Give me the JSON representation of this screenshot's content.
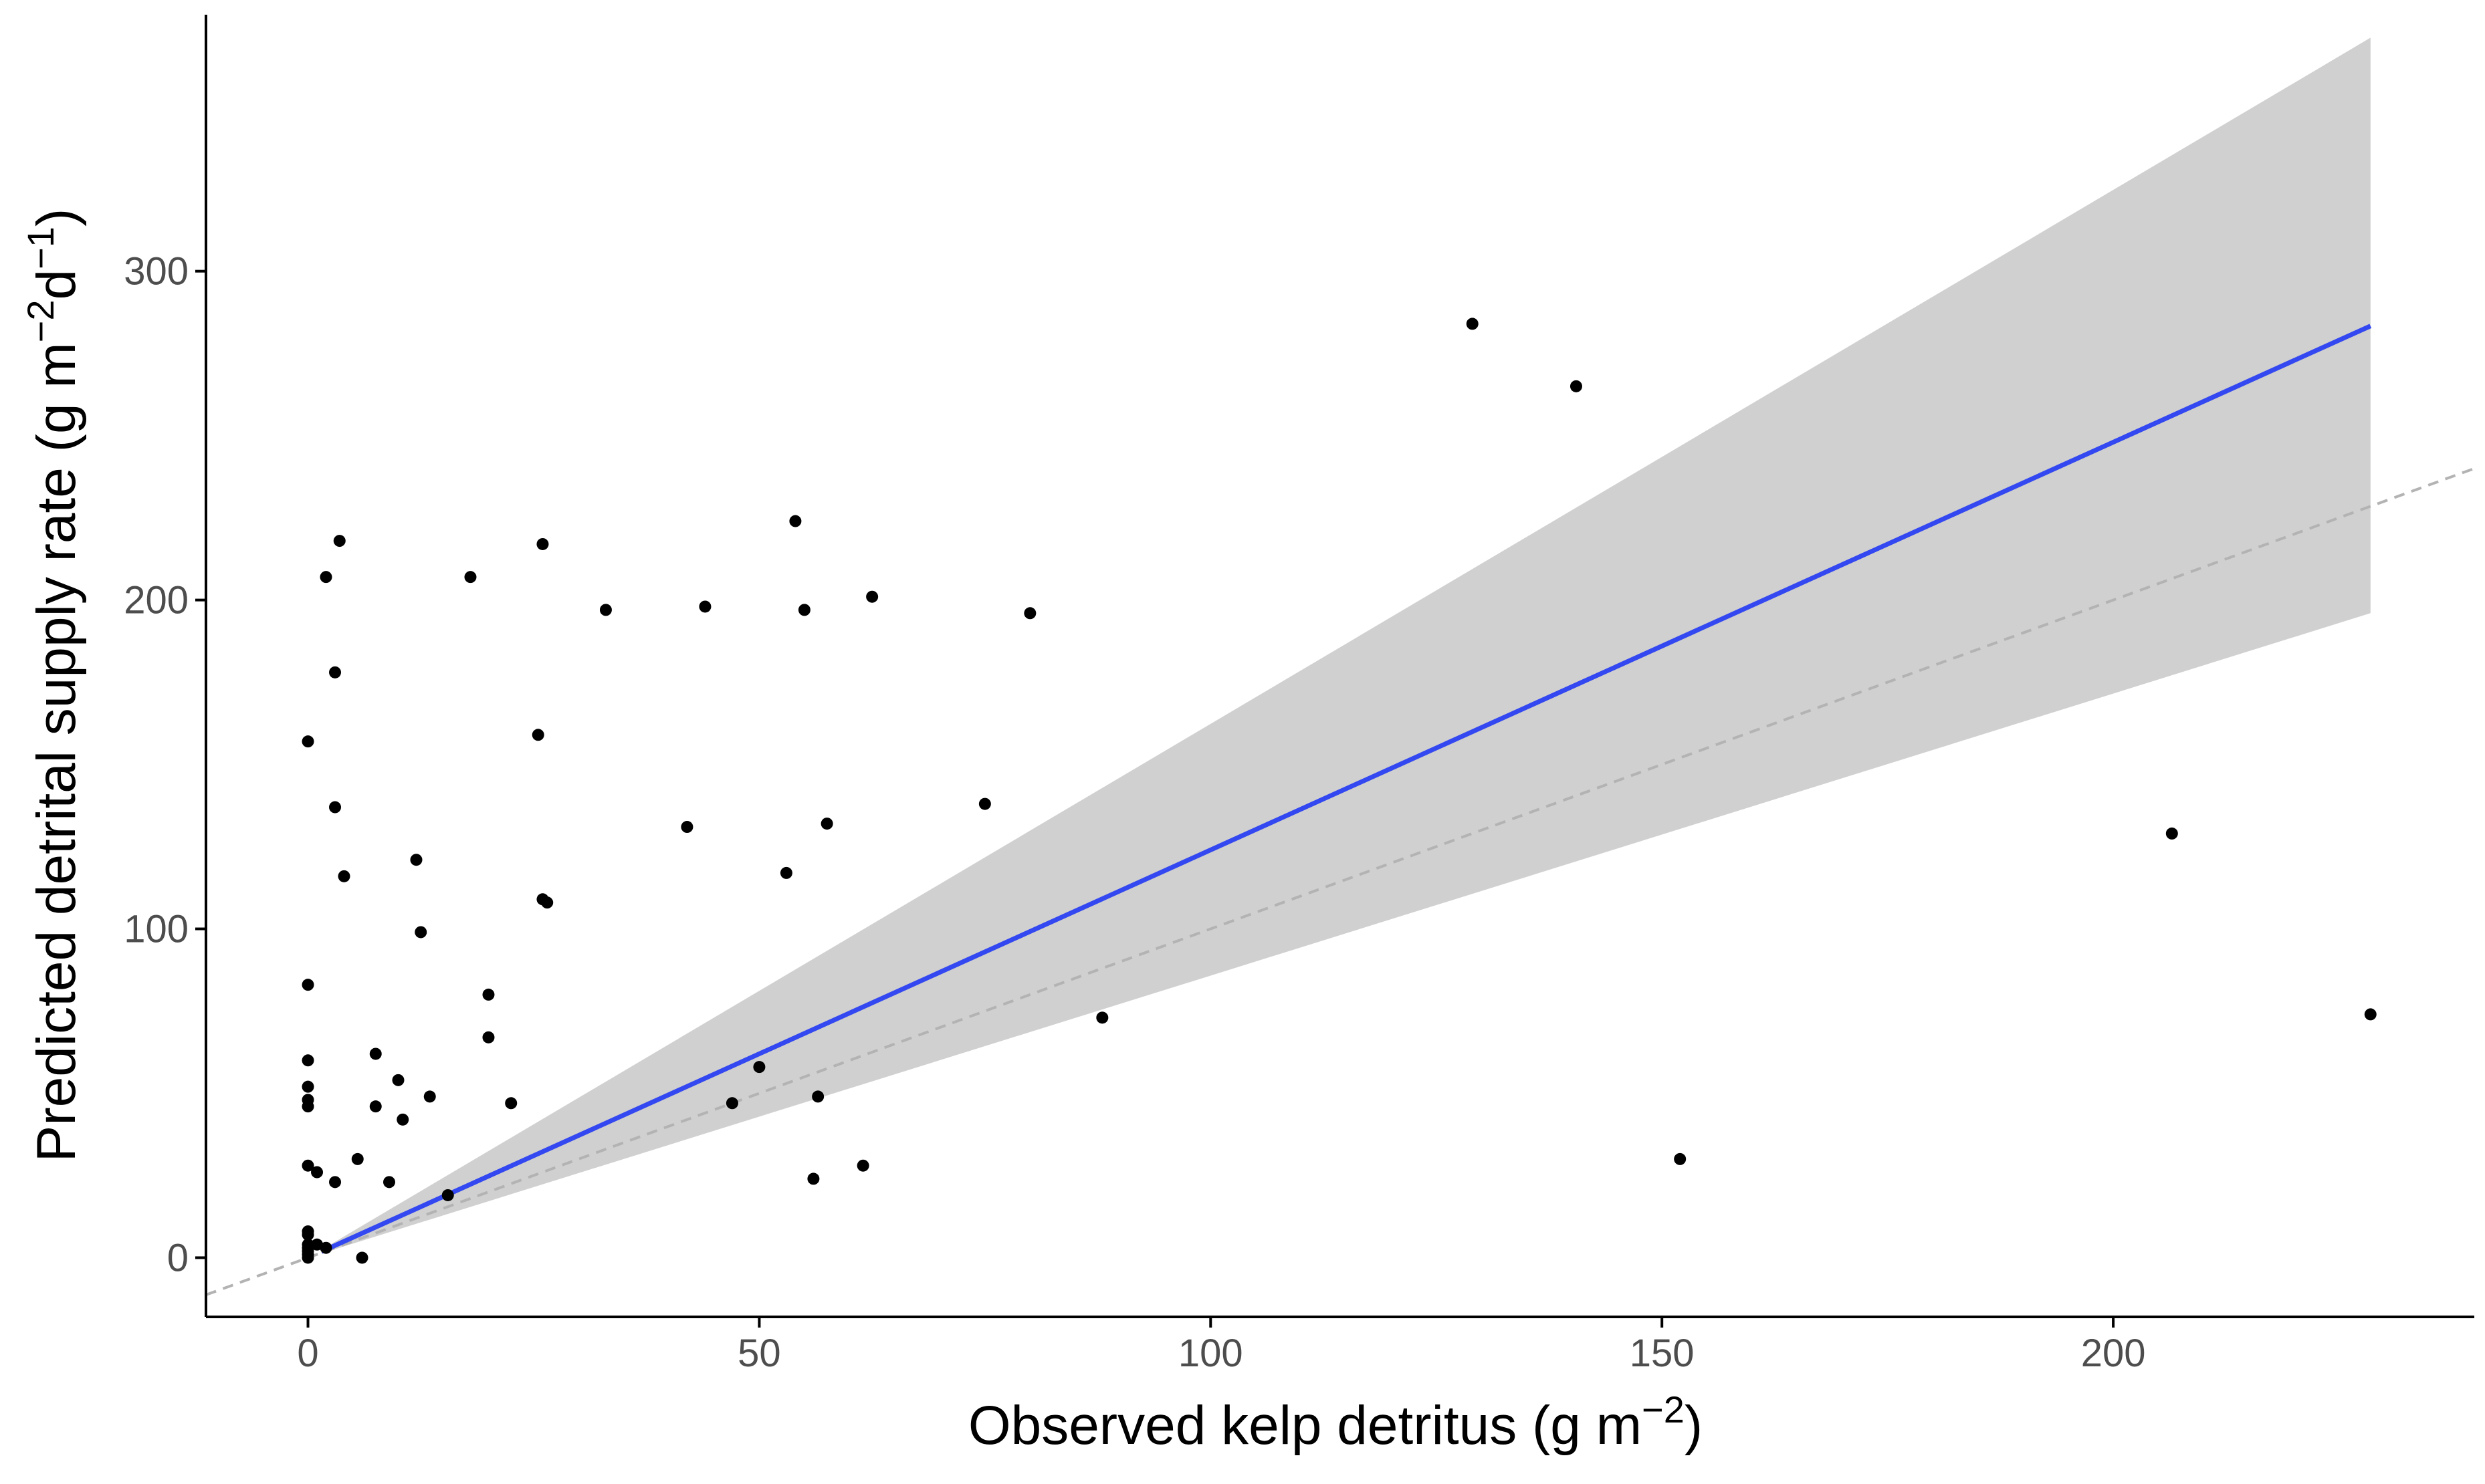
{
  "chart_data": {
    "type": "scatter",
    "title": "",
    "xlabel": {
      "text": "Observed kelp detritus (g m",
      "sup": "−2",
      "close": ")"
    },
    "ylabel": {
      "text": "Predicted detrital supply rate (g m",
      "sup1": "−2",
      "mid": "d",
      "sup2": "−1",
      "close": ")"
    },
    "xlim": [
      -11.3,
      240
    ],
    "ylim": [
      -18,
      378
    ],
    "x_ticks": [
      0,
      50,
      100,
      150,
      200
    ],
    "x_tick_labels": [
      "0",
      "50",
      "100",
      "150",
      "200"
    ],
    "y_ticks": [
      0,
      100,
      200,
      300
    ],
    "y_tick_labels": [
      "0",
      "100",
      "200",
      "300"
    ],
    "grid": false,
    "colors": {
      "fit_line": "#3348F0",
      "ribbon": "#D0D0D0",
      "points": "#000000",
      "reference_line": "#B3B3B3",
      "axis": "#000000",
      "tick_text": "#4D4D4D"
    },
    "reference_line": {
      "slope": 1,
      "intercept": 0,
      "style": "dashed"
    },
    "fit": {
      "slope": 1.24,
      "intercept": 0,
      "x_range": [
        1.5,
        228.5
      ]
    },
    "ribbon": {
      "x": [
        1.5,
        228.5
      ],
      "lower": [
        1.3,
        196
      ],
      "upper": [
        2.4,
        371
      ]
    },
    "points": [
      {
        "x": 0,
        "y": 0
      },
      {
        "x": 0,
        "y": 1
      },
      {
        "x": 0,
        "y": 2
      },
      {
        "x": 0,
        "y": 3
      },
      {
        "x": 0,
        "y": 4
      },
      {
        "x": 0,
        "y": 7
      },
      {
        "x": 0,
        "y": 8
      },
      {
        "x": 0,
        "y": 28
      },
      {
        "x": 0,
        "y": 46
      },
      {
        "x": 0,
        "y": 48
      },
      {
        "x": 0,
        "y": 52
      },
      {
        "x": 0,
        "y": 60
      },
      {
        "x": 0,
        "y": 83
      },
      {
        "x": 0,
        "y": 157
      },
      {
        "x": 1,
        "y": 4
      },
      {
        "x": 1,
        "y": 26
      },
      {
        "x": 2,
        "y": 207
      },
      {
        "x": 2,
        "y": 3
      },
      {
        "x": 3,
        "y": 178
      },
      {
        "x": 3,
        "y": 137
      },
      {
        "x": 3,
        "y": 23
      },
      {
        "x": 3.5,
        "y": 218
      },
      {
        "x": 4,
        "y": 116
      },
      {
        "x": 5.5,
        "y": 30
      },
      {
        "x": 6,
        "y": 0
      },
      {
        "x": 7.5,
        "y": 62
      },
      {
        "x": 7.5,
        "y": 46
      },
      {
        "x": 9,
        "y": 23
      },
      {
        "x": 10,
        "y": 54
      },
      {
        "x": 10.5,
        "y": 42
      },
      {
        "x": 12,
        "y": 121
      },
      {
        "x": 12.5,
        "y": 99
      },
      {
        "x": 13.5,
        "y": 49
      },
      {
        "x": 15.5,
        "y": 19
      },
      {
        "x": 18,
        "y": 207
      },
      {
        "x": 20,
        "y": 80
      },
      {
        "x": 20,
        "y": 67
      },
      {
        "x": 22.5,
        "y": 47
      },
      {
        "x": 25.5,
        "y": 159
      },
      {
        "x": 26,
        "y": 217
      },
      {
        "x": 26,
        "y": 109
      },
      {
        "x": 26.5,
        "y": 108
      },
      {
        "x": 33,
        "y": 197
      },
      {
        "x": 42,
        "y": 131
      },
      {
        "x": 44,
        "y": 198
      },
      {
        "x": 47,
        "y": 47
      },
      {
        "x": 50,
        "y": 58
      },
      {
        "x": 53,
        "y": 117
      },
      {
        "x": 54,
        "y": 224
      },
      {
        "x": 55,
        "y": 197
      },
      {
        "x": 56,
        "y": 24
      },
      {
        "x": 56.5,
        "y": 49
      },
      {
        "x": 57.5,
        "y": 132
      },
      {
        "x": 61.5,
        "y": 28
      },
      {
        "x": 62.5,
        "y": 201
      },
      {
        "x": 75,
        "y": 138
      },
      {
        "x": 80,
        "y": 196
      },
      {
        "x": 88,
        "y": 73
      },
      {
        "x": 129,
        "y": 284
      },
      {
        "x": 140.5,
        "y": 265
      },
      {
        "x": 152,
        "y": 30
      },
      {
        "x": 206.5,
        "y": 129
      },
      {
        "x": 228.5,
        "y": 74
      }
    ]
  }
}
